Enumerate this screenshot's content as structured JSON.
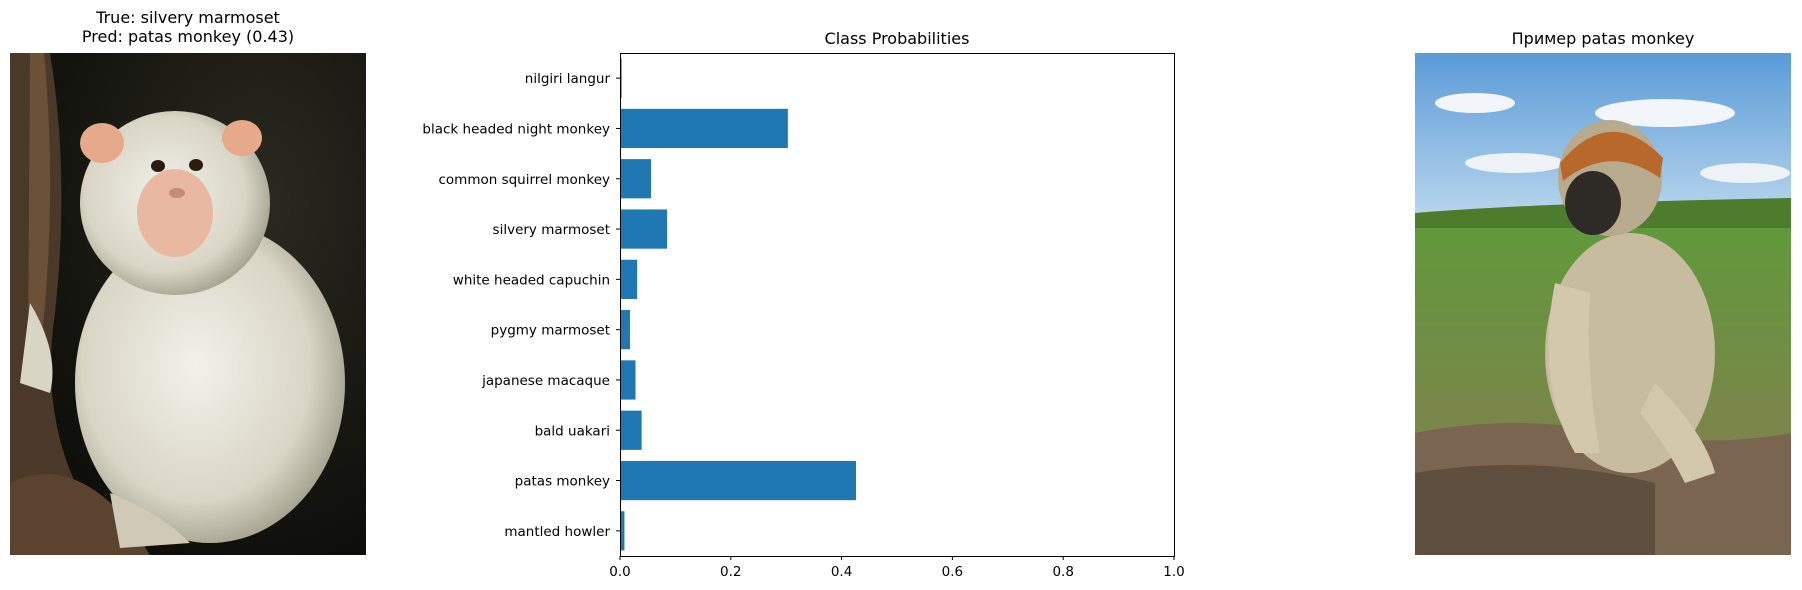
{
  "left_panel": {
    "title_line1": "True: silvery marmoset",
    "title_line2": "Pred: patas monkey (0.43)",
    "image_icon": "marmoset-photo"
  },
  "right_panel": {
    "title": "Пример patas monkey",
    "image_icon": "patas-monkey-photo"
  },
  "chart_data": {
    "type": "bar",
    "orientation": "horizontal",
    "title": "Class Probabilities",
    "xlabel": "",
    "ylabel": "",
    "xlim": [
      0,
      1.0
    ],
    "xticks": [
      "0.0",
      "0.2",
      "0.4",
      "0.6",
      "0.8",
      "1.0"
    ],
    "bar_color": "#1f77b4",
    "grid": false,
    "categories": [
      "nilgiri langur",
      "black headed night monkey",
      "common squirrel monkey",
      "silvery marmoset",
      "white headed capuchin",
      "pygmy marmoset",
      "japanese macaque",
      "bald uakari",
      "patas monkey",
      "mantled howler"
    ],
    "values": [
      0.003,
      0.303,
      0.056,
      0.085,
      0.031,
      0.018,
      0.028,
      0.039,
      0.426,
      0.008
    ]
  }
}
